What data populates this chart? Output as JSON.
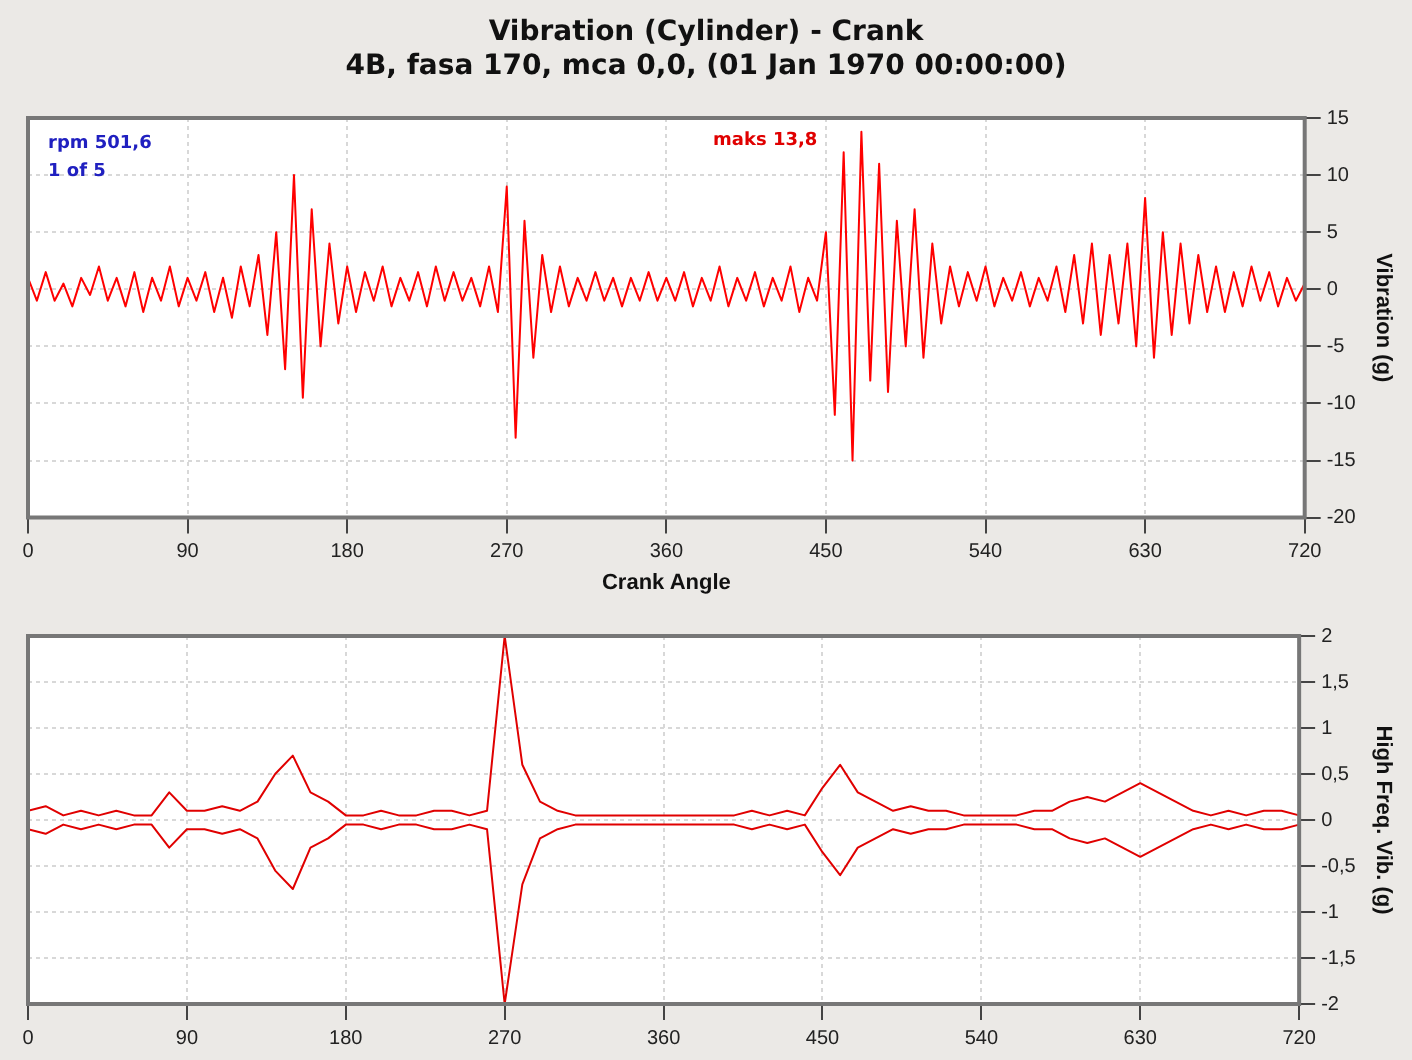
{
  "chart_data": [
    {
      "type": "line",
      "title": "Vibration (Cylinder) - Crank",
      "subtitle": "4B, fasa 170, mca 0,0, (01 Jan 1970 00:00:00)",
      "xlabel": "Crank Angle",
      "ylabel": "Vibration (g)",
      "grid": true,
      "marker": "none",
      "xlim": [
        0,
        720
      ],
      "xticks": [
        0,
        90,
        180,
        270,
        360,
        450,
        540,
        630,
        720
      ],
      "ylim": [
        -20,
        15
      ],
      "yticks": [
        -20,
        -15,
        -10,
        -5,
        0,
        5,
        10,
        15
      ],
      "annotations": [
        "rpm 501,6",
        "1 of 5",
        {
          "text": "maks 13,8",
          "x": 470,
          "y": 13.8
        }
      ],
      "series": [
        {
          "color": "#ff0000",
          "x": [
            0,
            5,
            10,
            15,
            20,
            25,
            30,
            35,
            40,
            45,
            50,
            55,
            60,
            65,
            70,
            75,
            80,
            85,
            90,
            95,
            100,
            105,
            110,
            115,
            120,
            125,
            130,
            135,
            140,
            145,
            150,
            155,
            160,
            165,
            170,
            175,
            180,
            185,
            190,
            195,
            200,
            205,
            210,
            215,
            220,
            225,
            230,
            235,
            240,
            245,
            250,
            255,
            260,
            265,
            270,
            275,
            280,
            285,
            290,
            295,
            300,
            305,
            310,
            315,
            320,
            325,
            330,
            335,
            340,
            345,
            350,
            355,
            360,
            365,
            370,
            375,
            380,
            385,
            390,
            395,
            400,
            405,
            410,
            415,
            420,
            425,
            430,
            435,
            440,
            445,
            450,
            455,
            460,
            465,
            470,
            475,
            480,
            485,
            490,
            495,
            500,
            505,
            510,
            515,
            520,
            525,
            530,
            535,
            540,
            545,
            550,
            555,
            560,
            565,
            570,
            575,
            580,
            585,
            590,
            595,
            600,
            605,
            610,
            615,
            620,
            625,
            630,
            635,
            640,
            645,
            650,
            655,
            660,
            665,
            670,
            675,
            680,
            685,
            690,
            695,
            700,
            705,
            710,
            715,
            720
          ],
          "values": [
            1,
            -1,
            1.5,
            -1,
            0.5,
            -1.5,
            1,
            -0.5,
            2,
            -1,
            1,
            -1.5,
            1.5,
            -2,
            1,
            -1,
            2,
            -1.5,
            1,
            -1,
            1.5,
            -2,
            1,
            -2.5,
            2,
            -1.5,
            3,
            -4,
            5,
            -7,
            10,
            -9.5,
            7,
            -5,
            4,
            -3,
            2,
            -2,
            1.5,
            -1,
            2,
            -1.5,
            1,
            -1,
            1.5,
            -1.5,
            2,
            -1,
            1.5,
            -1,
            1,
            -1.5,
            2,
            -2,
            9,
            -13,
            6,
            -6,
            3,
            -2,
            2,
            -1.5,
            1,
            -1,
            1.5,
            -1,
            1,
            -1.5,
            1,
            -1,
            1.5,
            -1,
            1,
            -1,
            1.5,
            -1.5,
            1,
            -1,
            2,
            -1.5,
            1,
            -1,
            1.5,
            -1.5,
            1,
            -1,
            2,
            -2,
            1,
            -1,
            5,
            -11,
            12,
            -15,
            13.8,
            -8,
            11,
            -9,
            6,
            -5,
            7,
            -6,
            4,
            -3,
            2,
            -1.5,
            1.5,
            -1,
            2,
            -1.5,
            1,
            -1,
            1.5,
            -1.5,
            1,
            -1,
            2,
            -2,
            3,
            -3,
            4,
            -4,
            3,
            -3,
            4,
            -5,
            8,
            -6,
            5,
            -4,
            4,
            -3,
            3,
            -2,
            2,
            -2,
            1.5,
            -1.5,
            2,
            -1,
            1.5,
            -1.5,
            1,
            -1,
            0.5
          ]
        }
      ]
    },
    {
      "type": "line",
      "ylabel": "High Freq. Vib. (g)",
      "grid": true,
      "marker": "none",
      "xlim": [
        0,
        720
      ],
      "xticks": [
        0,
        90,
        180,
        270,
        360,
        450,
        540,
        630,
        720
      ],
      "ylim": [
        -2,
        2
      ],
      "yticks": [
        -2,
        {
          "value": -1.5,
          "label": "-1,5"
        },
        -1,
        {
          "value": -0.5,
          "label": "-0,5"
        },
        0,
        {
          "value": 0.5,
          "label": "0,5"
        },
        1,
        {
          "value": 1.5,
          "label": "1,5"
        },
        2
      ],
      "series": [
        {
          "color": "#e00000",
          "x": [
            0,
            10,
            20,
            30,
            40,
            50,
            60,
            70,
            80,
            90,
            100,
            110,
            120,
            130,
            140,
            150,
            160,
            170,
            180,
            190,
            200,
            210,
            220,
            230,
            240,
            250,
            260,
            270,
            280,
            290,
            300,
            310,
            320,
            330,
            340,
            350,
            360,
            370,
            380,
            390,
            400,
            410,
            420,
            430,
            440,
            450,
            460,
            470,
            480,
            490,
            500,
            510,
            520,
            530,
            540,
            550,
            560,
            570,
            580,
            590,
            600,
            610,
            620,
            630,
            640,
            650,
            660,
            670,
            680,
            690,
            700,
            710,
            720
          ],
          "values": [
            0.1,
            0.15,
            0.05,
            0.1,
            0.05,
            0.1,
            0.05,
            0.05,
            0.3,
            0.1,
            0.1,
            0.15,
            0.1,
            0.2,
            0.5,
            0.7,
            0.3,
            0.2,
            0.05,
            0.05,
            0.1,
            0.05,
            0.05,
            0.1,
            0.1,
            0.05,
            0.1,
            2,
            0.6,
            0.2,
            0.1,
            0.05,
            0.05,
            0.05,
            0.05,
            0.05,
            0.05,
            0.05,
            0.05,
            0.05,
            0.05,
            0.1,
            0.05,
            0.1,
            0.05,
            0.35,
            0.6,
            0.3,
            0.2,
            0.1,
            0.15,
            0.1,
            0.1,
            0.05,
            0.05,
            0.05,
            0.05,
            0.1,
            0.1,
            0.2,
            0.25,
            0.2,
            0.3,
            0.4,
            0.3,
            0.2,
            0.1,
            0.05,
            0.1,
            0.05,
            0.1,
            0.1,
            0.05
          ]
        },
        {
          "color": "#e00000",
          "x": [
            0,
            10,
            20,
            30,
            40,
            50,
            60,
            70,
            80,
            90,
            100,
            110,
            120,
            130,
            140,
            150,
            160,
            170,
            180,
            190,
            200,
            210,
            220,
            230,
            240,
            250,
            260,
            270,
            280,
            290,
            300,
            310,
            320,
            330,
            340,
            350,
            360,
            370,
            380,
            390,
            400,
            410,
            420,
            430,
            440,
            450,
            460,
            470,
            480,
            490,
            500,
            510,
            520,
            530,
            540,
            550,
            560,
            570,
            580,
            590,
            600,
            610,
            620,
            630,
            640,
            650,
            660,
            670,
            680,
            690,
            700,
            710,
            720
          ],
          "values": [
            -0.1,
            -0.15,
            -0.05,
            -0.1,
            -0.05,
            -0.1,
            -0.05,
            -0.05,
            -0.3,
            -0.1,
            -0.1,
            -0.15,
            -0.1,
            -0.2,
            -0.55,
            -0.75,
            -0.3,
            -0.2,
            -0.05,
            -0.05,
            -0.1,
            -0.05,
            -0.05,
            -0.1,
            -0.1,
            -0.05,
            -0.1,
            -2,
            -0.7,
            -0.2,
            -0.1,
            -0.05,
            -0.05,
            -0.05,
            -0.05,
            -0.05,
            -0.05,
            -0.05,
            -0.05,
            -0.05,
            -0.05,
            -0.1,
            -0.05,
            -0.1,
            -0.05,
            -0.35,
            -0.6,
            -0.3,
            -0.2,
            -0.1,
            -0.15,
            -0.1,
            -0.1,
            -0.05,
            -0.05,
            -0.05,
            -0.05,
            -0.1,
            -0.1,
            -0.2,
            -0.25,
            -0.2,
            -0.3,
            -0.4,
            -0.3,
            -0.2,
            -0.1,
            -0.05,
            -0.1,
            -0.05,
            -0.1,
            -0.1,
            -0.05
          ]
        }
      ]
    }
  ]
}
